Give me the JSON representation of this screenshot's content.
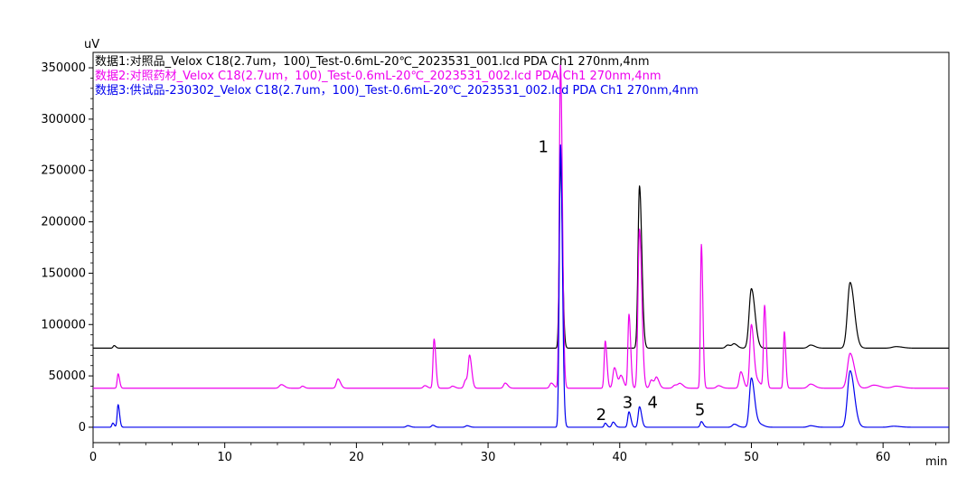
{
  "chart_data": {
    "type": "line",
    "title": "",
    "xlabel": "min",
    "ylabel": "uV",
    "xlim": [
      0,
      65
    ],
    "ylim": [
      -15000,
      365000
    ],
    "x_ticks": [
      0,
      10,
      20,
      30,
      40,
      50,
      60
    ],
    "x_tick_labels": [
      "0",
      "10",
      "20",
      "30",
      "40",
      "50",
      "60"
    ],
    "y_ticks": [
      0,
      50000,
      100000,
      150000,
      200000,
      250000,
      300000,
      350000
    ],
    "y_tick_labels": [
      "0",
      "50000",
      "100000",
      "150000",
      "200000",
      "250000",
      "300000",
      "350000"
    ],
    "grid": false,
    "legend_position": "top-left",
    "series": [
      {
        "name": "数据1:对照品_Velox C18(2.7um，100)_Test-0.6mL-20℃_2023531_001.lcd PDA Ch1 270nm,4nm",
        "color": "#000000",
        "baseline": 77000,
        "peaks": [
          {
            "x": 1.6,
            "height": 2500,
            "width": 0.08
          },
          {
            "x": 35.5,
            "height": 182000,
            "width": 0.09
          },
          {
            "x": 41.5,
            "height": 158000,
            "width": 0.11
          },
          {
            "x": 48.2,
            "height": 3000,
            "width": 0.15
          },
          {
            "x": 48.7,
            "height": 4000,
            "width": 0.15
          },
          {
            "x": 50.0,
            "height": 58000,
            "width": 0.17
          },
          {
            "x": 54.5,
            "height": 3000,
            "width": 0.2
          },
          {
            "x": 57.5,
            "height": 64000,
            "width": 0.2
          },
          {
            "x": 61.0,
            "height": 1500,
            "width": 0.3
          }
        ]
      },
      {
        "name": "数据2:对照药材_Velox C18(2.7um，100)_Test-0.6mL-20℃_2023531_002.lcd PDA Ch1 270nm,4nm",
        "color": "#ee00ee",
        "baseline": 38000,
        "peaks": [
          {
            "x": 1.9,
            "height": 14000,
            "width": 0.07
          },
          {
            "x": 14.3,
            "height": 3500,
            "width": 0.15
          },
          {
            "x": 15.9,
            "height": 2000,
            "width": 0.1
          },
          {
            "x": 18.6,
            "height": 9000,
            "width": 0.12
          },
          {
            "x": 25.2,
            "height": 2500,
            "width": 0.12
          },
          {
            "x": 25.9,
            "height": 48000,
            "width": 0.08
          },
          {
            "x": 27.3,
            "height": 2000,
            "width": 0.12
          },
          {
            "x": 28.3,
            "height": 8000,
            "width": 0.12
          },
          {
            "x": 28.6,
            "height": 30000,
            "width": 0.1
          },
          {
            "x": 31.3,
            "height": 5000,
            "width": 0.12
          },
          {
            "x": 34.8,
            "height": 5000,
            "width": 0.12
          },
          {
            "x": 35.5,
            "height": 315000,
            "width": 0.09
          },
          {
            "x": 38.9,
            "height": 46000,
            "width": 0.08
          },
          {
            "x": 39.6,
            "height": 20000,
            "width": 0.12
          },
          {
            "x": 40.1,
            "height": 12000,
            "width": 0.12
          },
          {
            "x": 40.7,
            "height": 72000,
            "width": 0.08
          },
          {
            "x": 41.5,
            "height": 155000,
            "width": 0.11
          },
          {
            "x": 42.4,
            "height": 8000,
            "width": 0.12
          },
          {
            "x": 42.8,
            "height": 10000,
            "width": 0.12
          },
          {
            "x": 44.2,
            "height": 3000,
            "width": 0.15
          },
          {
            "x": 44.6,
            "height": 4000,
            "width": 0.15
          },
          {
            "x": 46.2,
            "height": 140000,
            "width": 0.07
          },
          {
            "x": 47.5,
            "height": 2500,
            "width": 0.15
          },
          {
            "x": 49.2,
            "height": 16000,
            "width": 0.12
          },
          {
            "x": 50.0,
            "height": 62000,
            "width": 0.12
          },
          {
            "x": 50.5,
            "height": 6000,
            "width": 0.15
          },
          {
            "x": 51.0,
            "height": 80000,
            "width": 0.08
          },
          {
            "x": 52.5,
            "height": 55000,
            "width": 0.07
          },
          {
            "x": 54.5,
            "height": 4000,
            "width": 0.2
          },
          {
            "x": 57.5,
            "height": 34000,
            "width": 0.2
          },
          {
            "x": 59.3,
            "height": 3000,
            "width": 0.3
          },
          {
            "x": 61.0,
            "height": 2000,
            "width": 0.3
          }
        ]
      },
      {
        "name": "数据3:供试品-230302_Velox C18(2.7um，100)_Test-0.6mL-20℃_2023531_002.lcd PDA Ch1 270nm,4nm",
        "color": "#0000ee",
        "baseline": 0,
        "peaks": [
          {
            "x": 1.5,
            "height": 4000,
            "width": 0.07
          },
          {
            "x": 1.9,
            "height": 22000,
            "width": 0.07
          },
          {
            "x": 23.9,
            "height": 1500,
            "width": 0.12
          },
          {
            "x": 25.8,
            "height": 2000,
            "width": 0.1
          },
          {
            "x": 28.4,
            "height": 1500,
            "width": 0.12
          },
          {
            "x": 35.5,
            "height": 275000,
            "width": 0.09
          },
          {
            "x": 38.9,
            "height": 4000,
            "width": 0.08
          },
          {
            "x": 39.5,
            "height": 5000,
            "width": 0.1
          },
          {
            "x": 40.7,
            "height": 15000,
            "width": 0.09
          },
          {
            "x": 41.5,
            "height": 20000,
            "width": 0.1
          },
          {
            "x": 46.2,
            "height": 5500,
            "width": 0.09
          },
          {
            "x": 48.7,
            "height": 3000,
            "width": 0.15
          },
          {
            "x": 50.0,
            "height": 48000,
            "width": 0.15
          },
          {
            "x": 50.6,
            "height": 3000,
            "width": 0.2
          },
          {
            "x": 54.5,
            "height": 1500,
            "width": 0.2
          },
          {
            "x": 57.5,
            "height": 55000,
            "width": 0.2
          },
          {
            "x": 60.8,
            "height": 1000,
            "width": 0.3
          }
        ]
      }
    ],
    "annotations": [
      {
        "text": "1",
        "x": 34.2,
        "y": 268000
      },
      {
        "text": "2",
        "x": 38.6,
        "y": 7000
      },
      {
        "text": "3",
        "x": 40.6,
        "y": 19000
      },
      {
        "text": "4",
        "x": 42.5,
        "y": 19000
      },
      {
        "text": "5",
        "x": 46.1,
        "y": 12000
      }
    ]
  }
}
